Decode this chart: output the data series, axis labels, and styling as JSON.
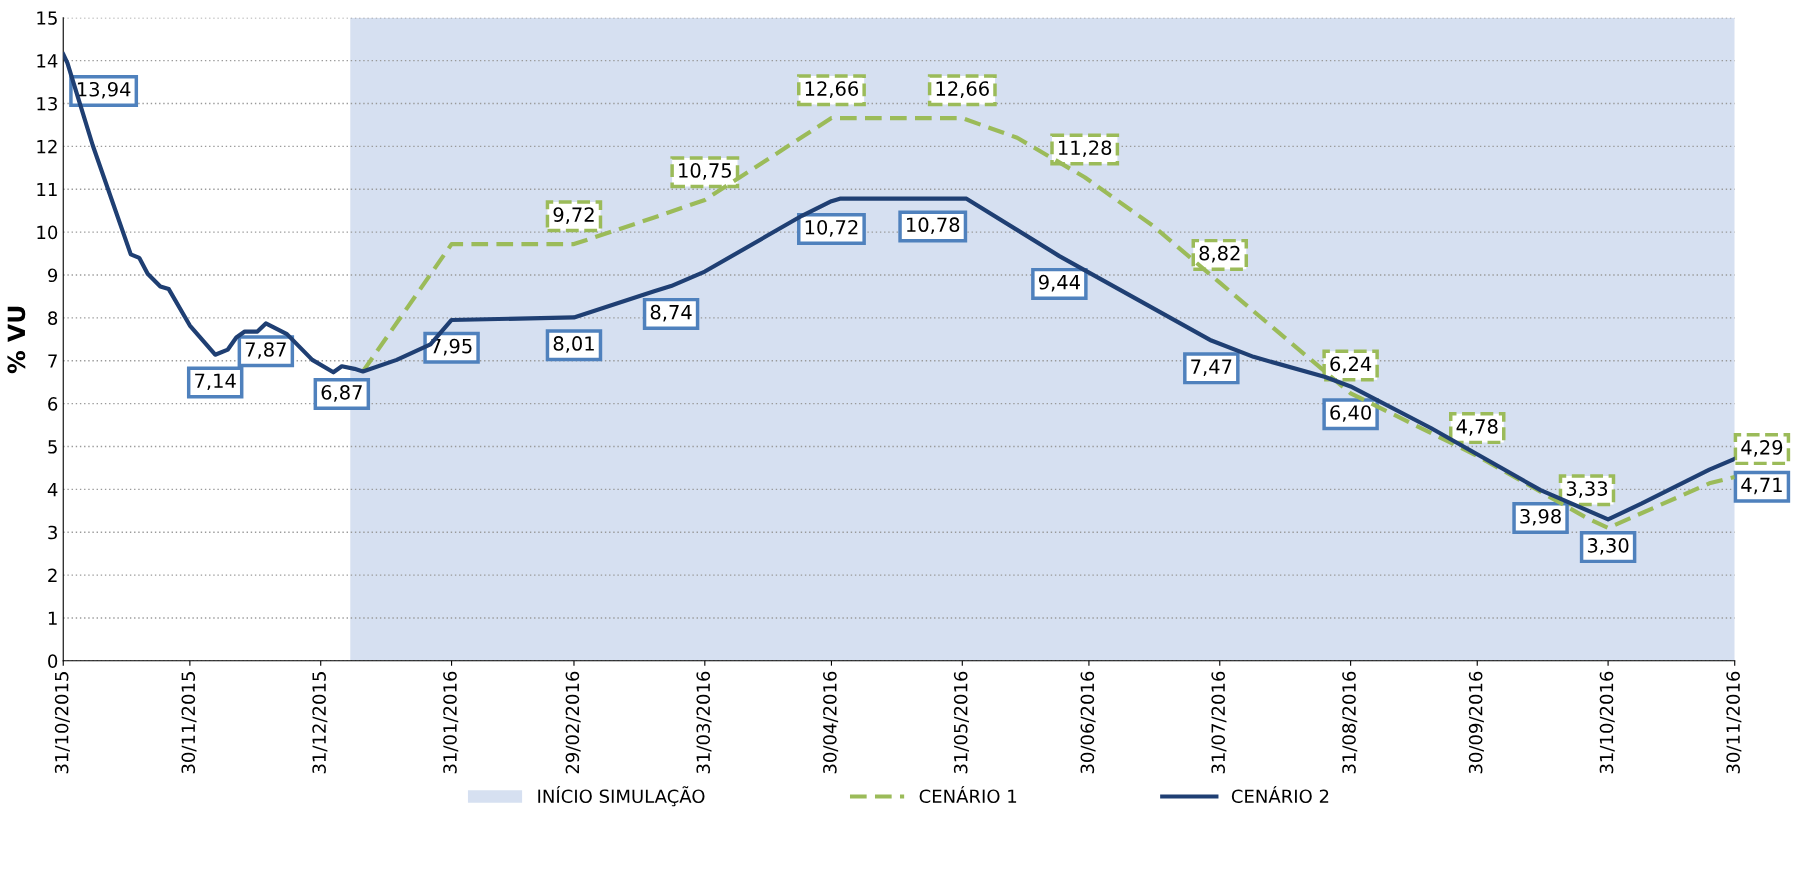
{
  "chart_data": {
    "type": "line",
    "ylabel": "% VU",
    "xlim": [
      "2015-10-31",
      "2016-11-30"
    ],
    "xticks": [
      {
        "value": "2015-10-31",
        "label": "31/10/2015"
      },
      {
        "value": "2015-11-30",
        "label": "30/11/2015"
      },
      {
        "value": "2015-12-31",
        "label": "31/12/2015"
      },
      {
        "value": "2016-01-31",
        "label": "31/01/2016"
      },
      {
        "value": "2016-02-29",
        "label": "29/02/2016"
      },
      {
        "value": "2016-03-31",
        "label": "31/03/2016"
      },
      {
        "value": "2016-04-30",
        "label": "30/04/2016"
      },
      {
        "value": "2016-05-31",
        "label": "31/05/2016"
      },
      {
        "value": "2016-06-30",
        "label": "30/06/2016"
      },
      {
        "value": "2016-07-31",
        "label": "31/07/2016"
      },
      {
        "value": "2016-08-31",
        "label": "31/08/2016"
      },
      {
        "value": "2016-09-30",
        "label": "30/09/2016"
      },
      {
        "value": "2016-10-31",
        "label": "31/10/2016"
      },
      {
        "value": "2016-11-30",
        "label": "30/11/2016"
      }
    ],
    "ylim": [
      0,
      15
    ],
    "yticks": [
      0,
      1,
      2,
      3,
      4,
      5,
      6,
      7,
      8,
      9,
      10,
      11,
      12,
      13,
      14,
      15
    ],
    "grid": "y",
    "legend": "bottom",
    "marker": "none",
    "bands": [
      {
        "axis": "x",
        "from": "2016-01-07",
        "to": "2016-11-30",
        "label": "INÍCIO SIMULAÇÃO",
        "color": "#d6e0f1"
      }
    ],
    "series": [
      {
        "name": "CENÁRIO 1",
        "color": "#9bbb59",
        "line_style": "dashed",
        "x": [
          "2016-01-10",
          "2016-01-31",
          "2016-02-29",
          "2016-03-19",
          "2016-03-31",
          "2016-04-30",
          "2016-05-31",
          "2016-06-13",
          "2016-06-29",
          "2016-07-15",
          "2016-07-31",
          "2016-08-31",
          "2016-09-30",
          "2016-10-26",
          "2016-10-31",
          "2016-11-24",
          "2016-11-30"
        ],
        "values": [
          6.75,
          9.72,
          9.72,
          10.34,
          10.75,
          12.66,
          12.66,
          12.2,
          11.28,
          10.16,
          8.82,
          6.24,
          4.78,
          3.33,
          3.1,
          4.14,
          4.29
        ],
        "value_labels": [
          null,
          null,
          "9,72",
          null,
          "10,75",
          "12,66",
          "12,66",
          null,
          "11,28",
          null,
          "8,82",
          "6,24",
          "4,78",
          "3,33",
          null,
          null,
          "4,29"
        ]
      },
      {
        "name": "CENÁRIO 2",
        "color": "#1f3f73",
        "line_style": "solid",
        "x": [
          "2015-10-31",
          "2015-11-01",
          "2015-11-04",
          "2015-11-07",
          "2015-11-16",
          "2015-11-18",
          "2015-11-20",
          "2015-11-23",
          "2015-11-25",
          "2015-11-30",
          "2015-12-06",
          "2015-12-09",
          "2015-12-11",
          "2015-12-13",
          "2015-12-16",
          "2015-12-18",
          "2015-12-23",
          "2015-12-29",
          "2016-01-03",
          "2016-01-05",
          "2016-01-08",
          "2016-01-10",
          "2016-01-18",
          "2016-01-26",
          "2016-01-31",
          "2016-02-29",
          "2016-03-19",
          "2016-03-23",
          "2016-03-31",
          "2016-04-23",
          "2016-04-30",
          "2016-05-02",
          "2016-05-24",
          "2016-06-01",
          "2016-06-23",
          "2016-07-29",
          "2016-08-08",
          "2016-08-25",
          "2016-08-31",
          "2016-09-19",
          "2016-10-15",
          "2016-10-31",
          "2016-11-08",
          "2016-11-24",
          "2016-11-30"
        ],
        "values": [
          14.15,
          13.94,
          12.98,
          12.02,
          9.48,
          9.4,
          9.03,
          8.73,
          8.67,
          7.82,
          7.14,
          7.26,
          7.54,
          7.68,
          7.68,
          7.87,
          7.62,
          7.02,
          6.73,
          6.87,
          6.81,
          6.75,
          7.02,
          7.38,
          7.95,
          8.01,
          8.62,
          8.74,
          9.08,
          10.38,
          10.72,
          10.78,
          10.78,
          10.78,
          9.44,
          7.47,
          7.09,
          6.62,
          6.4,
          5.43,
          3.98,
          3.3,
          3.67,
          4.46,
          4.71
        ],
        "value_labels": [
          null,
          "13,94",
          null,
          null,
          null,
          null,
          null,
          null,
          null,
          null,
          "7,14",
          null,
          null,
          null,
          null,
          "7,87",
          null,
          null,
          null,
          "6,87",
          null,
          null,
          null,
          null,
          "7,95",
          "8,01",
          null,
          "8,74",
          null,
          null,
          "10,72",
          null,
          "10,78",
          null,
          "9,44",
          "7,47",
          null,
          null,
          "6,40",
          null,
          "3,98",
          "3,30",
          null,
          null,
          "4,71"
        ]
      }
    ]
  }
}
